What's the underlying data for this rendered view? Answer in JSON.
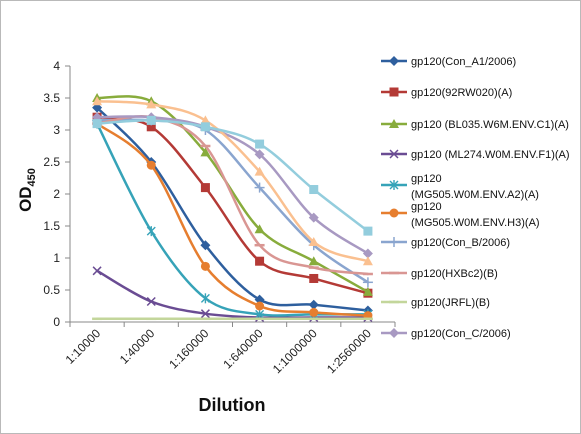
{
  "chart_data": {
    "type": "line",
    "title": "",
    "xlabel": "Dilution",
    "ylabel": "OD",
    "ylabel_sub": "450",
    "ylim": [
      0,
      4
    ],
    "yticks": [
      "0",
      "0.5",
      "1",
      "1.5",
      "2",
      "2.5",
      "3",
      "3.5",
      "4"
    ],
    "categories": [
      "1:10000",
      "1:40000",
      "1:160000",
      "1:640000",
      "1:1000000",
      "1:2560000"
    ],
    "grid": false,
    "legend_position": "right",
    "series": [
      {
        "name": "gp120(Con_A1/2006)",
        "color": "#2e5f9e",
        "marker": "diamond",
        "values": [
          3.35,
          2.5,
          1.2,
          0.35,
          0.27,
          0.18
        ]
      },
      {
        "name": "gp120(92RW020)(A)",
        "color": "#b43a36",
        "marker": "square",
        "values": [
          3.2,
          3.05,
          2.1,
          0.95,
          0.68,
          0.45
        ]
      },
      {
        "name": "gp120 (BL035.W6M.ENV.C1)(A)",
        "color": "#88ac3c",
        "marker": "triangle",
        "values": [
          3.5,
          3.45,
          2.65,
          1.45,
          0.95,
          0.47
        ]
      },
      {
        "name": "gp120 (ML274.W0M.ENV.F1)(A)",
        "color": "#6a4c93",
        "marker": "x",
        "values": [
          0.8,
          0.32,
          0.13,
          0.07,
          0.07,
          0.07
        ]
      },
      {
        "name": "gp120 (MG505.W0M.ENV.A2)(A)",
        "color": "#36a3b8",
        "marker": "star",
        "values": [
          3.1,
          1.42,
          0.37,
          0.12,
          0.12,
          0.12
        ]
      },
      {
        "name": "gp120 (MG505.W0M.ENV.H3)(A)",
        "color": "#e67e2f",
        "marker": "circle",
        "values": [
          3.1,
          2.45,
          0.87,
          0.25,
          0.15,
          0.1
        ]
      },
      {
        "name": "gp120(Con_B/2006)",
        "color": "#8aa5cf",
        "marker": "plus",
        "values": [
          3.15,
          3.15,
          3.0,
          2.1,
          1.2,
          0.62
        ]
      },
      {
        "name": "gp120(HXBc2)(B)",
        "color": "#d99693",
        "marker": "dash",
        "values": [
          3.1,
          3.2,
          2.75,
          1.2,
          0.85,
          0.75
        ]
      },
      {
        "name": "gp120(JRFL)(B)",
        "color": "#c3d69b",
        "marker": "dash",
        "values": [
          0.05,
          0.05,
          0.05,
          0.05,
          0.05,
          0.05
        ]
      },
      {
        "name": "gp120(Con_C/2006)",
        "color": "#a899c2",
        "marker": "diamond",
        "values": [
          3.2,
          3.2,
          3.05,
          2.62,
          1.63,
          1.07
        ]
      },
      {
        "name": "",
        "color": "#fac090",
        "marker": "triangle",
        "values": [
          3.45,
          3.4,
          3.15,
          2.35,
          1.25,
          0.95
        ]
      },
      {
        "name": "",
        "color": "#93cddd",
        "marker": "square",
        "values": [
          3.1,
          3.15,
          3.05,
          2.78,
          2.07,
          1.42
        ]
      }
    ]
  }
}
